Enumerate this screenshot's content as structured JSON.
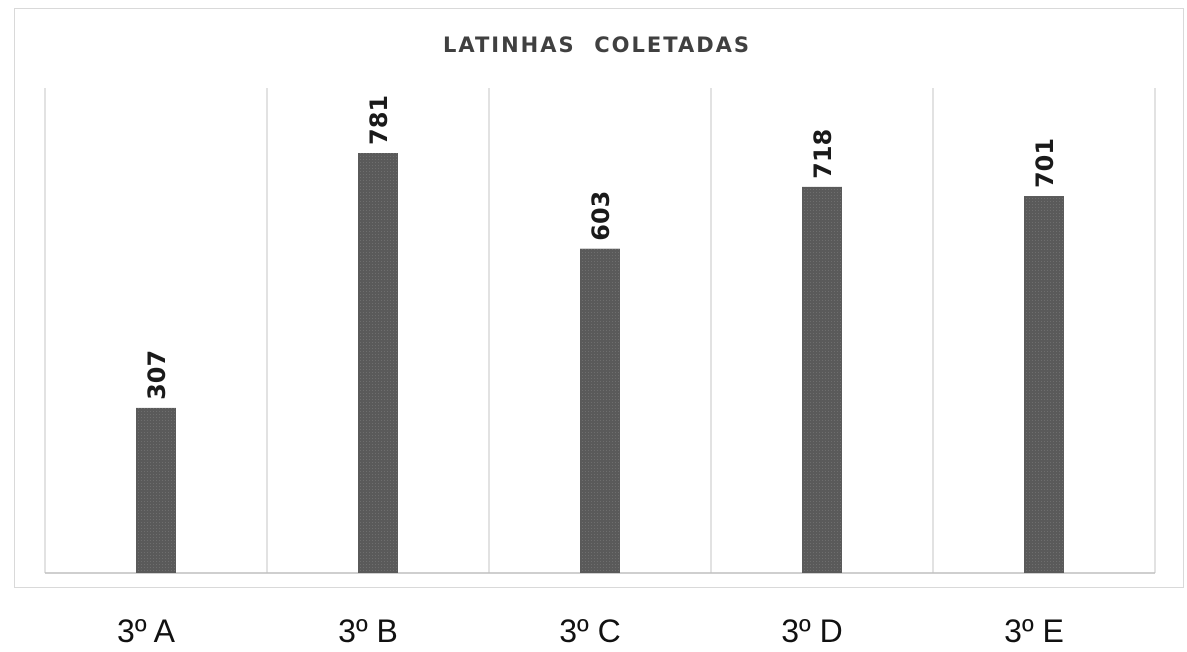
{
  "chart_data": {
    "type": "bar",
    "title": "LATINHAS  COLETADAS",
    "xlabel": "",
    "ylabel": "",
    "categories": [
      "3º A",
      "3º B",
      "3º C",
      "3º D",
      "3º E"
    ],
    "values": [
      307,
      781,
      603,
      718,
      701
    ],
    "ylim": [
      0,
      900
    ],
    "grid": "vertical separators between categories",
    "legend": "none",
    "data_labels": "rotated above bars",
    "colors": {
      "bar": "#5a5a5a",
      "bar_texture": "#6b6b6b",
      "gridline": "#d9d9d9",
      "axis": "#bfbfbf",
      "title": "#404040"
    }
  }
}
